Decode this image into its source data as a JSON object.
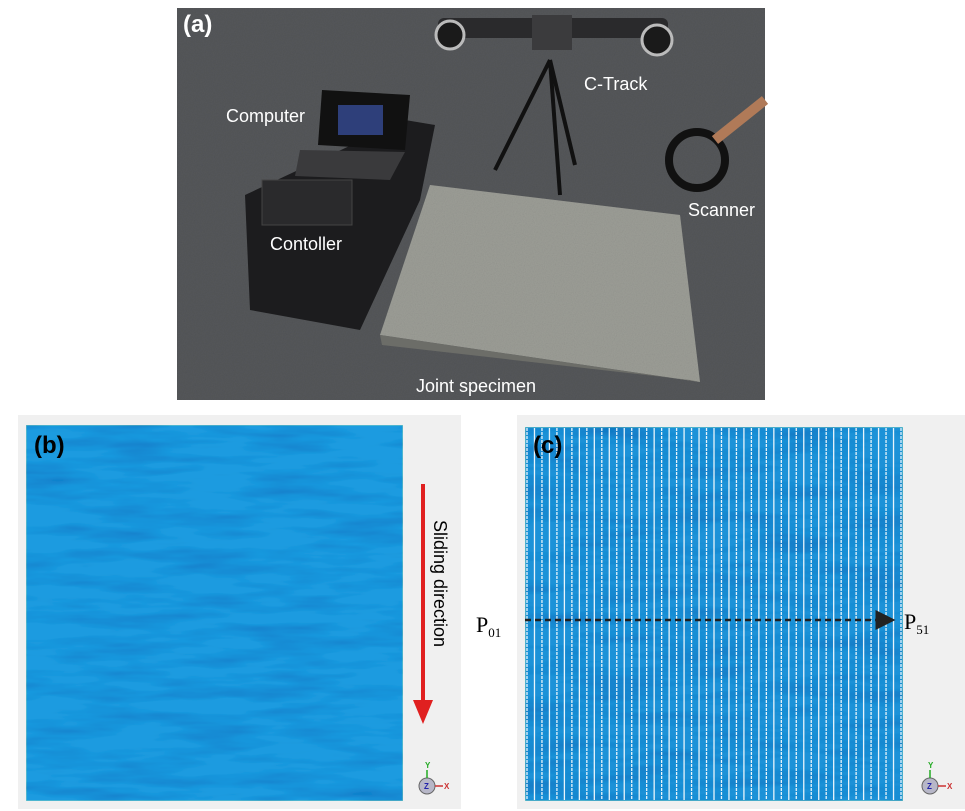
{
  "panels": {
    "a": {
      "label": "(a)",
      "annotations": {
        "computer": "Computer",
        "ctrack": "C-Track",
        "scanner": "Scanner",
        "controller": "Contoller",
        "specimen": "Joint specimen"
      }
    },
    "b": {
      "label": "(b)",
      "arrow_label": "Sliding direction",
      "axes": {
        "y": "Y",
        "z": "Z",
        "x": "X"
      }
    },
    "c": {
      "label": "(c)",
      "start": {
        "letter": "P",
        "sub": "01"
      },
      "end": {
        "letter": "P",
        "sub": "51"
      },
      "axes": {
        "y": "Y",
        "z": "Z",
        "x": "X"
      }
    }
  }
}
